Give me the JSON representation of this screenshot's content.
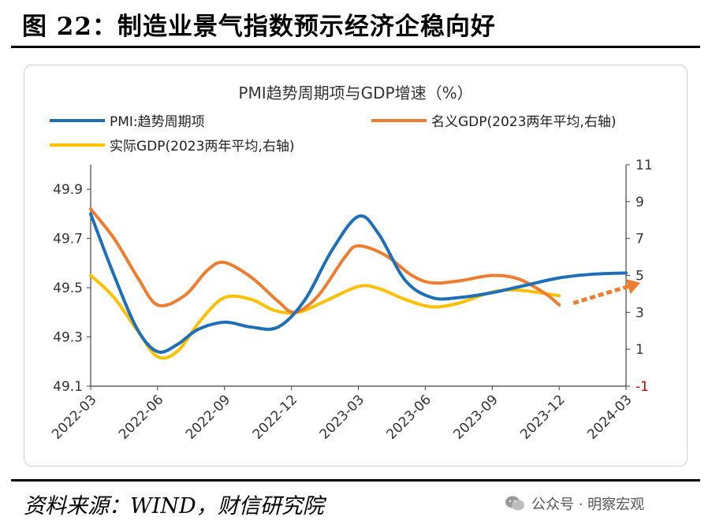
{
  "figure_title": "图 22：制造业景气指数预示经济企稳向好",
  "source": "资料来源：WIND，财信研究院",
  "watermark": "公众号 · 明察宏观",
  "colors": {
    "pmi": "#1f6fb8",
    "nominal": "#ed7d31",
    "real": "#ffc000",
    "negative_tick": "#c00000",
    "axis": "#444444"
  },
  "chart_data": {
    "type": "line",
    "title": "PMI趋势周期项与GDP增速（%）",
    "x_categories": [
      "2022-03",
      "2022-06",
      "2022-09",
      "2022-12",
      "2023-03",
      "2023-06",
      "2023-09",
      "2023-12",
      "2024-03"
    ],
    "left_axis": {
      "ylim": [
        49.1,
        50.0
      ],
      "ticks": [
        "49.9",
        "49.7",
        "49.5",
        "49.3",
        "49.1"
      ],
      "tick_values": [
        49.9,
        49.7,
        49.5,
        49.3,
        49.1
      ]
    },
    "right_axis": {
      "ylim": [
        -1,
        11
      ],
      "ticks": [
        "11",
        "9",
        "7",
        "5",
        "3",
        "1",
        "-1"
      ],
      "tick_values": [
        11,
        9,
        7,
        5,
        3,
        1,
        -1
      ]
    },
    "series": [
      {
        "name": "PMI:趋势周期项",
        "axis": "left",
        "color_key": "pmi",
        "points": [
          [
            0,
            49.8
          ],
          [
            0.35,
            49.55
          ],
          [
            0.7,
            49.33
          ],
          [
            1.0,
            49.24
          ],
          [
            1.3,
            49.27
          ],
          [
            1.6,
            49.33
          ],
          [
            2.0,
            49.36
          ],
          [
            2.4,
            49.34
          ],
          [
            2.8,
            49.34
          ],
          [
            3.2,
            49.45
          ],
          [
            3.6,
            49.65
          ],
          [
            4.0,
            49.79
          ],
          [
            4.3,
            49.72
          ],
          [
            4.7,
            49.53
          ],
          [
            5.1,
            49.46
          ],
          [
            5.5,
            49.46
          ],
          [
            6.0,
            49.48
          ],
          [
            6.5,
            49.51
          ],
          [
            7.0,
            49.54
          ],
          [
            7.5,
            49.555
          ],
          [
            8.0,
            49.56
          ]
        ]
      },
      {
        "name": "名义GDP(2023两年平均,右轴)",
        "axis": "right",
        "color_key": "nominal",
        "points": [
          [
            0,
            8.6
          ],
          [
            0.35,
            7.0
          ],
          [
            0.7,
            4.9
          ],
          [
            1.0,
            3.4
          ],
          [
            1.4,
            3.9
          ],
          [
            1.75,
            5.3
          ],
          [
            2.0,
            5.7
          ],
          [
            2.4,
            4.9
          ],
          [
            2.8,
            3.6
          ],
          [
            3.05,
            3.0
          ],
          [
            3.4,
            3.9
          ],
          [
            3.8,
            6.0
          ],
          [
            4.0,
            6.6
          ],
          [
            4.4,
            6.1
          ],
          [
            4.8,
            5.0
          ],
          [
            5.1,
            4.6
          ],
          [
            5.5,
            4.7
          ],
          [
            6.0,
            5.0
          ],
          [
            6.4,
            4.8
          ],
          [
            6.8,
            4.0
          ],
          [
            7.0,
            3.4
          ]
        ]
      },
      {
        "name": "实际GDP(2023两年平均,右轴)",
        "axis": "right",
        "color_key": "real",
        "points": [
          [
            0,
            5.0
          ],
          [
            0.35,
            3.8
          ],
          [
            0.7,
            2.0
          ],
          [
            1.0,
            0.6
          ],
          [
            1.3,
            0.9
          ],
          [
            1.65,
            2.6
          ],
          [
            2.0,
            3.8
          ],
          [
            2.4,
            3.7
          ],
          [
            2.75,
            3.1
          ],
          [
            3.1,
            3.0
          ],
          [
            3.5,
            3.6
          ],
          [
            4.0,
            4.4
          ],
          [
            4.3,
            4.3
          ],
          [
            4.7,
            3.7
          ],
          [
            5.1,
            3.3
          ],
          [
            5.5,
            3.5
          ],
          [
            6.0,
            4.1
          ],
          [
            6.4,
            4.2
          ],
          [
            7.0,
            3.9
          ]
        ]
      }
    ],
    "forecast_arrow": {
      "color_key": "nominal",
      "from": [
        7.0,
        3.5
      ],
      "to": [
        8.0,
        4.6
      ],
      "axis": "right"
    }
  }
}
